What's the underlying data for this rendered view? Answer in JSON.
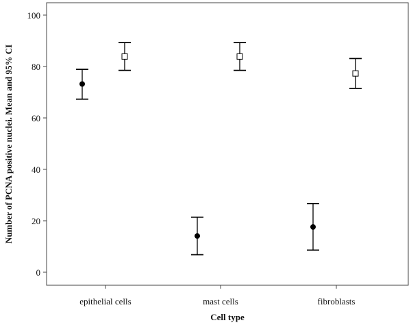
{
  "chart_data": {
    "type": "scatter",
    "xlabel": "Cell type",
    "ylabel": "Number of  PCNA positive nuclei. Mean and 95% CI",
    "categories": [
      "epithelial cells",
      "mast cells",
      "fibroblasts"
    ],
    "ylim": [
      0,
      100
    ],
    "yticks": [
      0,
      20,
      40,
      60,
      80,
      100
    ],
    "grid": false,
    "legend": "none",
    "series": [
      {
        "marker": "filled-circle",
        "color": "#000000",
        "points": [
          {
            "category": "epithelial cells",
            "mean": 73.2,
            "lower": 67.3,
            "upper": 78.9
          },
          {
            "category": "mast cells",
            "mean": 14.1,
            "lower": 6.8,
            "upper": 21.4
          },
          {
            "category": "fibroblasts",
            "mean": 17.6,
            "lower": 8.6,
            "upper": 26.7
          }
        ]
      },
      {
        "marker": "open-square",
        "color": "#000000",
        "points": [
          {
            "category": "epithelial cells",
            "mean": 83.9,
            "lower": 78.5,
            "upper": 89.3
          },
          {
            "category": "mast cells",
            "mean": 83.9,
            "lower": 78.5,
            "upper": 89.3
          },
          {
            "category": "fibroblasts",
            "mean": 77.3,
            "lower": 71.5,
            "upper": 83.1
          }
        ]
      }
    ]
  }
}
